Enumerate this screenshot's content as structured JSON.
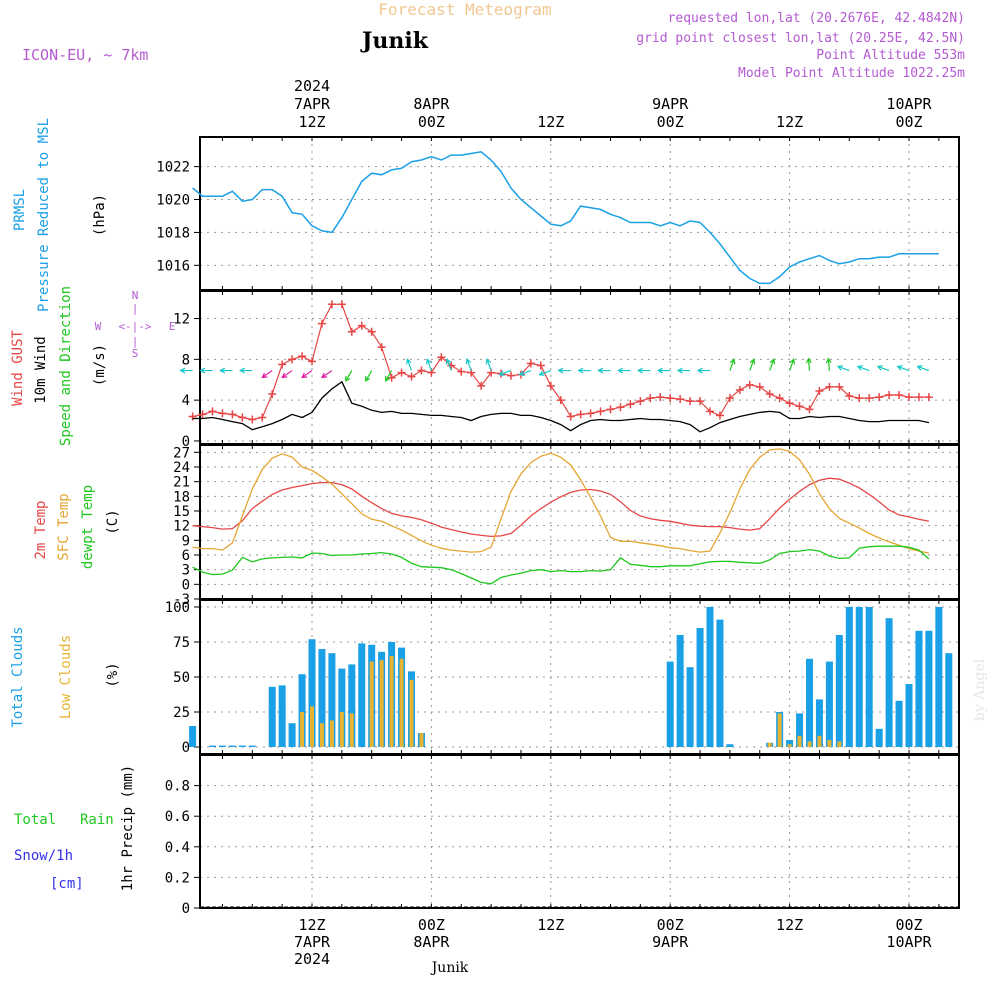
{
  "header": {
    "title": "Forecast Meteogram",
    "location": "Junik",
    "model": "ICON-EU, ~ 7km",
    "requested": "requested lon,lat (20.2676E, 42.4842N)",
    "gridpoint": "grid point closest lon,lat (20.25E, 42.5N)",
    "altitude": "Point Altitude 553m",
    "model_altitude": "Model Point Altitude 1022.25m",
    "footer_location": "Junik",
    "credit": "by Angel"
  },
  "time_axis": {
    "top_labels": [
      {
        "hour": 12,
        "lines": [
          "2024",
          "7APR",
          "12Z"
        ]
      },
      {
        "hour": 24,
        "lines": [
          "8APR",
          "00Z"
        ]
      },
      {
        "hour": 36,
        "lines": [
          "12Z"
        ]
      },
      {
        "hour": 48,
        "lines": [
          "9APR",
          "00Z"
        ]
      },
      {
        "hour": 60,
        "lines": [
          "12Z"
        ]
      },
      {
        "hour": 72,
        "lines": [
          "10APR",
          "00Z"
        ]
      }
    ],
    "bottom_labels": [
      {
        "hour": 12,
        "lines": [
          "12Z",
          "7APR",
          "2024"
        ]
      },
      {
        "hour": 24,
        "lines": [
          "00Z",
          "8APR"
        ]
      },
      {
        "hour": 36,
        "lines": [
          "12Z"
        ]
      },
      {
        "hour": 48,
        "lines": [
          "00Z",
          "9APR"
        ]
      },
      {
        "hour": 60,
        "lines": [
          "12Z"
        ]
      },
      {
        "hour": 72,
        "lines": [
          "00Z",
          "10APR"
        ]
      }
    ]
  },
  "panel_labels": {
    "pressure": [
      "PRMSL",
      "Pressure Reduced to MSL",
      "(hPa)"
    ],
    "wind": [
      "Wind GUST",
      "10m Wind",
      "Speed and Direction",
      "(m/s)"
    ],
    "compass": {
      "n": "N",
      "s": "S",
      "w": "W",
      "e": "E",
      "ns": "|",
      "we": "<-|->"
    },
    "temp": [
      "2m Temp",
      "SFC Temp",
      "dewpt Temp",
      "(C)"
    ],
    "clouds": [
      "Total Clouds",
      "Low Clouds",
      "(%)"
    ],
    "precip": [
      "Total",
      "Rain",
      "Snow/1h",
      "[cm]",
      "1hr Precip (mm)"
    ]
  },
  "colors": {
    "pressure": "#1aa0e6",
    "gust": "#e64646",
    "wind": "#000000",
    "temp2m": "#e64646",
    "sfc": "#e6a532",
    "dewpt": "#1ec81e",
    "total_clouds": "#1aa0e6",
    "low_clouds": "#e6b432",
    "title_orange": "#f0c890",
    "meta_purple": "#b45ad2",
    "rain_green": "#1ec81e",
    "snow_blue": "#3232e6"
  },
  "chart_data": [
    {
      "id": "pressure",
      "type": "line",
      "ylabel": "(hPa)",
      "ylim": [
        1014.5,
        1023.8
      ],
      "yticks": [
        1016,
        1018,
        1020,
        1022
      ],
      "x_unit": "hours since 2024-04-07 03Z",
      "series": [
        {
          "name": "PRMSL",
          "x": [
            0,
            1,
            2,
            3,
            4,
            5,
            6,
            7,
            8,
            9,
            10,
            11,
            12,
            13,
            14,
            15,
            16,
            17,
            18,
            19,
            20,
            21,
            22,
            23,
            24,
            25,
            26,
            27,
            28,
            29,
            30,
            31,
            32,
            33,
            34,
            35,
            36,
            37,
            38,
            39,
            40,
            41,
            42,
            43,
            44,
            45,
            46,
            47,
            48,
            49,
            50,
            51,
            52,
            53,
            54,
            55,
            56,
            57,
            58,
            59,
            60,
            61,
            62,
            63,
            64,
            65,
            66,
            67,
            68,
            69,
            70,
            71,
            72,
            73,
            74,
            75
          ],
          "values": [
            1020.7,
            1020.2,
            1020.2,
            1020.2,
            1020.5,
            1019.9,
            1020.0,
            1020.6,
            1020.6,
            1020.2,
            1019.2,
            1019.1,
            1018.4,
            1018.1,
            1018.0,
            1018.9,
            1020.0,
            1021.1,
            1021.6,
            1021.5,
            1021.8,
            1021.9,
            1022.3,
            1022.4,
            1022.6,
            1022.4,
            1022.7,
            1022.7,
            1022.8,
            1022.9,
            1022.4,
            1021.7,
            1020.7,
            1020.0,
            1019.5,
            1019.0,
            1018.5,
            1018.4,
            1018.7,
            1019.6,
            1019.5,
            1019.4,
            1019.1,
            1018.9,
            1018.6,
            1018.6,
            1018.6,
            1018.4,
            1018.6,
            1018.4,
            1018.7,
            1018.6,
            1018.0,
            1017.3,
            1016.5,
            1015.7,
            1015.2,
            1014.9,
            1014.9,
            1015.3,
            1015.9,
            1016.2,
            1016.4,
            1016.6,
            1016.3,
            1016.1,
            1016.2,
            1016.4,
            1016.4,
            1016.5,
            1016.5,
            1016.7,
            1016.7,
            1016.7,
            1016.7,
            1016.7
          ]
        }
      ]
    },
    {
      "id": "wind",
      "type": "line",
      "ylabel": "(m/s)",
      "ylim": [
        -0.3,
        14.7
      ],
      "yticks": [
        0,
        4,
        8,
        12
      ],
      "series": [
        {
          "name": "Wind GUST",
          "values": [
            2.4,
            2.6,
            2.9,
            2.7,
            2.6,
            2.3,
            2.1,
            2.3,
            4.6,
            7.5,
            8.0,
            8.3,
            7.8,
            11.5,
            13.4,
            13.4,
            10.7,
            11.3,
            10.7,
            9.2,
            6.2,
            6.7,
            6.3,
            6.9,
            6.7,
            8.2,
            7.4,
            6.8,
            6.7,
            5.4,
            6.7,
            6.6,
            6.4,
            6.5,
            7.6,
            7.4,
            5.4,
            4.0,
            2.4,
            2.6,
            2.7,
            2.9,
            3.1,
            3.3,
            3.6,
            3.9,
            4.2,
            4.3,
            4.2,
            4.1,
            3.9,
            3.9,
            2.9,
            2.5,
            4.2,
            5.0,
            5.5,
            5.3,
            4.6,
            4.2,
            3.7,
            3.4,
            3.1,
            4.9,
            5.3,
            5.3,
            4.4,
            4.2,
            4.2,
            4.3,
            4.5,
            4.5,
            4.3,
            4.3,
            4.3
          ]
        },
        {
          "name": "10m Wind",
          "values": [
            2.2,
            2.2,
            2.3,
            2.1,
            1.9,
            1.7,
            1.1,
            1.4,
            1.7,
            2.1,
            2.6,
            2.3,
            2.8,
            4.2,
            5.1,
            5.8,
            3.7,
            3.4,
            3.0,
            2.8,
            2.9,
            2.7,
            2.7,
            2.6,
            2.5,
            2.5,
            2.4,
            2.3,
            2.0,
            2.4,
            2.6,
            2.7,
            2.7,
            2.5,
            2.5,
            2.3,
            2.0,
            1.6,
            1.0,
            1.6,
            2.0,
            2.1,
            2.0,
            2.0,
            2.1,
            2.2,
            2.1,
            2.1,
            2.0,
            1.9,
            1.6,
            0.9,
            1.3,
            1.8,
            2.1,
            2.4,
            2.6,
            2.8,
            2.9,
            2.8,
            2.2,
            2.2,
            2.4,
            2.3,
            2.4,
            2.4,
            2.2,
            2.0,
            1.9,
            1.9,
            2.0,
            2.0,
            2.0,
            2.0,
            1.8
          ]
        }
      ]
    },
    {
      "id": "temperature",
      "type": "line",
      "ylabel": "(C)",
      "ylim": [
        -3,
        28.5
      ],
      "yticks": [
        -3,
        0,
        3,
        6,
        9,
        12,
        15,
        18,
        21,
        24,
        27
      ],
      "series": [
        {
          "name": "2m Temp",
          "values": [
            12.0,
            11.8,
            11.6,
            11.3,
            11.4,
            13.0,
            15.5,
            17.0,
            18.4,
            19.3,
            19.8,
            20.2,
            20.6,
            20.8,
            20.8,
            20.4,
            19.5,
            18.0,
            16.7,
            15.5,
            14.5,
            14.0,
            13.7,
            13.2,
            12.5,
            11.7,
            11.2,
            10.7,
            10.3,
            10.0,
            9.8,
            9.9,
            10.4,
            12.1,
            14.0,
            15.5,
            16.8,
            17.9,
            18.8,
            19.3,
            19.4,
            19.1,
            18.4,
            16.9,
            15.1,
            14.0,
            13.4,
            13.1,
            12.9,
            12.5,
            12.1,
            11.9,
            11.8,
            11.8,
            11.6,
            11.3,
            11.1,
            11.4,
            13.4,
            15.6,
            17.4,
            19.0,
            20.4,
            21.3,
            21.7,
            21.5,
            20.7,
            19.7,
            18.4,
            16.9,
            15.2,
            14.2,
            13.8,
            13.3,
            12.9
          ]
        },
        {
          "name": "SFC Temp",
          "values": [
            7.6,
            7.3,
            7.3,
            7.0,
            8.5,
            14.0,
            19.5,
            23.5,
            25.8,
            26.7,
            26.0,
            24.0,
            23.3,
            22.0,
            20.5,
            18.5,
            16.5,
            14.4,
            13.3,
            12.9,
            12.0,
            11.1,
            10.0,
            8.9,
            8.0,
            7.4,
            7.0,
            6.8,
            6.6,
            6.7,
            7.6,
            13.4,
            19.0,
            22.6,
            24.9,
            26.2,
            26.8,
            26.0,
            24.4,
            21.4,
            17.8,
            14.0,
            9.6,
            8.8,
            8.8,
            8.5,
            8.2,
            7.9,
            7.5,
            7.3,
            6.9,
            6.6,
            6.8,
            10.5,
            14.7,
            19.5,
            23.5,
            26.0,
            27.5,
            27.7,
            27.2,
            25.5,
            22.5,
            18.5,
            15.5,
            13.5,
            12.5,
            11.5,
            10.4,
            9.5,
            8.7,
            8.0,
            7.3,
            6.8,
            6.4
          ]
        },
        {
          "name": "dewpt Temp",
          "values": [
            3.5,
            2.5,
            2.0,
            2.1,
            2.9,
            5.5,
            4.6,
            5.2,
            5.4,
            5.5,
            5.6,
            5.4,
            6.4,
            6.3,
            5.9,
            6.0,
            6.0,
            6.2,
            6.3,
            6.5,
            6.2,
            5.5,
            4.3,
            3.6,
            3.5,
            3.4,
            3.0,
            2.2,
            1.3,
            0.4,
            0.1,
            1.4,
            1.9,
            2.3,
            2.8,
            3.0,
            2.6,
            2.8,
            2.6,
            2.6,
            2.8,
            2.7,
            3.0,
            5.4,
            4.1,
            3.9,
            3.6,
            3.6,
            3.8,
            3.8,
            3.8,
            4.2,
            4.6,
            4.7,
            4.7,
            4.5,
            4.4,
            4.3,
            5.0,
            6.3,
            6.7,
            6.8,
            7.1,
            6.8,
            5.8,
            5.3,
            5.4,
            7.4,
            7.7,
            7.8,
            7.8,
            7.8,
            7.6,
            7.0,
            5.2
          ]
        }
      ]
    },
    {
      "id": "clouds",
      "type": "bar",
      "ylabel": "(%)",
      "ylim": [
        -5,
        105
      ],
      "yticks": [
        0,
        25,
        50,
        75,
        100
      ],
      "series": [
        {
          "name": "Total Clouds",
          "values": [
            15,
            0,
            1,
            1,
            1,
            1,
            1,
            0,
            43,
            44,
            17,
            52,
            77,
            70,
            67,
            56,
            59,
            74,
            73,
            68,
            75,
            71,
            54,
            10,
            0,
            0,
            0,
            0,
            0,
            0,
            0,
            0,
            0,
            0,
            0,
            0,
            0,
            0,
            0,
            0,
            0,
            0,
            0,
            0,
            0,
            0,
            0,
            0,
            61,
            80,
            57,
            85,
            100,
            91,
            2,
            0,
            0,
            0,
            3,
            25,
            5,
            24,
            63,
            34,
            61,
            80,
            100,
            100,
            100,
            13,
            92,
            33,
            45,
            83,
            83,
            100,
            67
          ]
        },
        {
          "name": "Low Clouds",
          "values": [
            0,
            0,
            0,
            0,
            0,
            0,
            0,
            0,
            0,
            0,
            0,
            25,
            29,
            17,
            19,
            25,
            24,
            0,
            61,
            62,
            65,
            63,
            48,
            10,
            0,
            0,
            0,
            0,
            0,
            0,
            0,
            0,
            0,
            0,
            0,
            0,
            0,
            0,
            0,
            0,
            0,
            0,
            0,
            0,
            0,
            0,
            0,
            0,
            0,
            0,
            0,
            0,
            0,
            0,
            0,
            0,
            0,
            0,
            3,
            24,
            2,
            8,
            4,
            8,
            5,
            4,
            0,
            0,
            0,
            0,
            0,
            0,
            0,
            0,
            0,
            0,
            0
          ]
        }
      ]
    },
    {
      "id": "precip",
      "type": "bar",
      "ylabel": "1hr Precip (mm)",
      "ylim": [
        0,
        1.0
      ],
      "yticks": [
        0,
        0.2,
        0.4,
        0.6,
        0.8
      ],
      "series": [
        {
          "name": "Total Rain",
          "values": []
        }
      ]
    }
  ]
}
